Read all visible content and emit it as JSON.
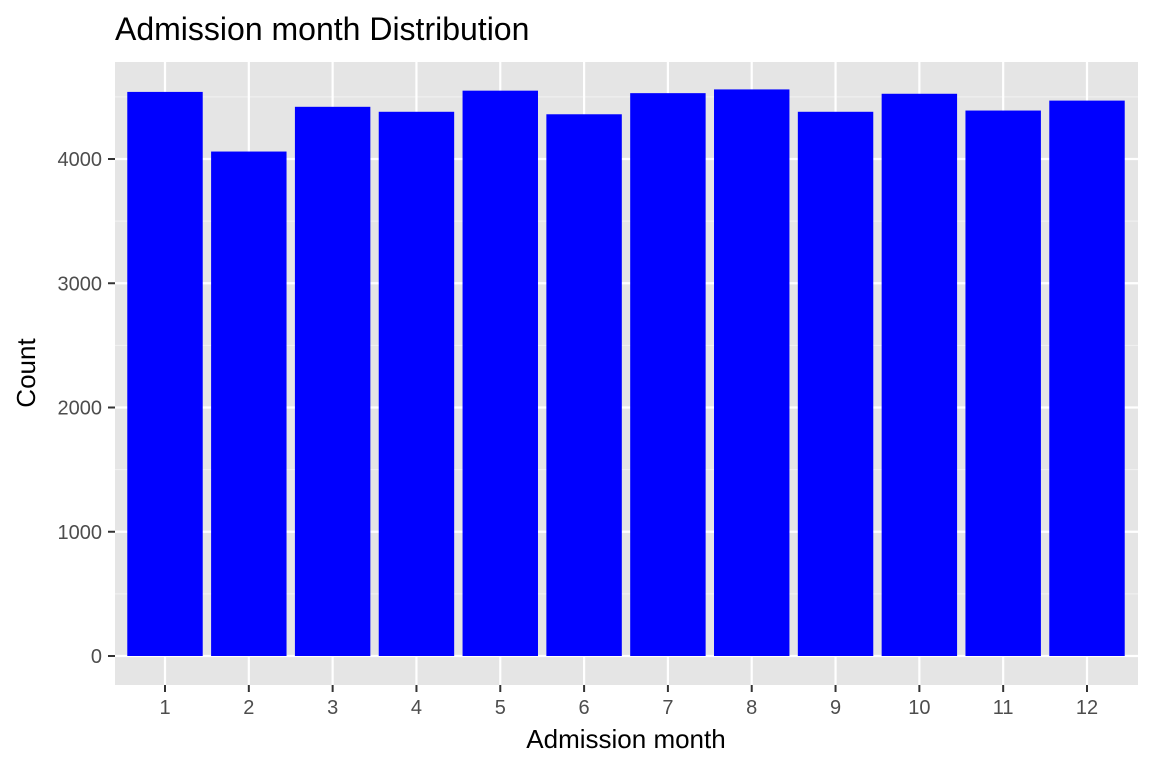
{
  "colors": {
    "bar": "#0000ff",
    "panel_background": "#e5e5e5",
    "grid_major": "#ffffff",
    "grid_minor": "#f2f2f2",
    "tick": "#333333",
    "tick_label": "#4d4d4d",
    "title": "#000000"
  },
  "chart_data": {
    "type": "bar",
    "title": "Admission month Distribution",
    "xlabel": "Admission month",
    "ylabel": "Count",
    "categories": [
      "1",
      "2",
      "3",
      "4",
      "5",
      "6",
      "7",
      "8",
      "9",
      "10",
      "11",
      "12"
    ],
    "values": [
      4540,
      4060,
      4420,
      4380,
      4550,
      4360,
      4530,
      4560,
      4380,
      4525,
      4390,
      4470
    ],
    "ylim": [
      0,
      4790
    ],
    "y_ticks": [
      0,
      1000,
      2000,
      3000,
      4000
    ],
    "y_tick_labels": [
      "0",
      "1000",
      "2000",
      "3000",
      "4000"
    ],
    "grid": true,
    "legend": "none"
  }
}
